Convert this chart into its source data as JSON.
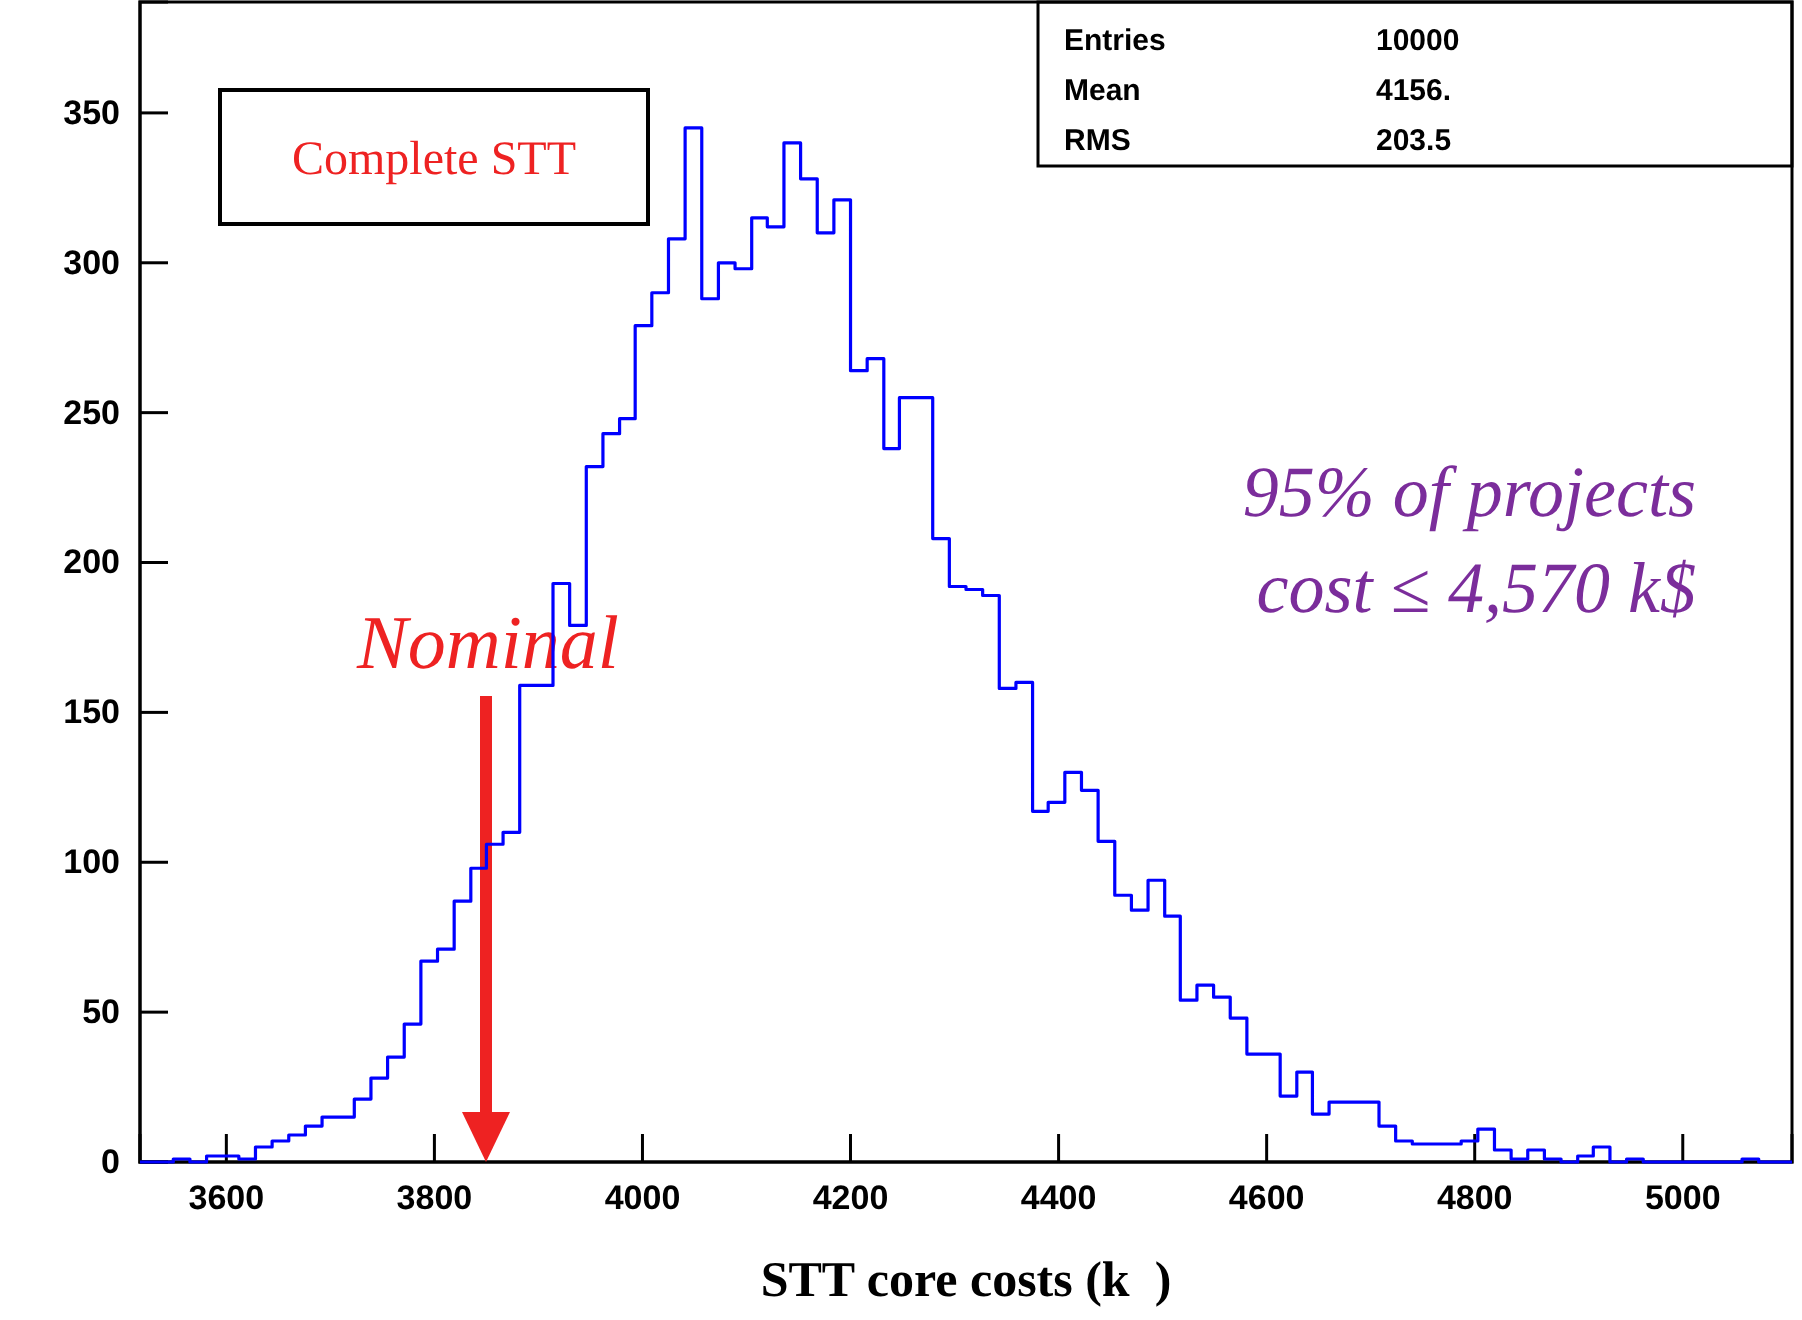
{
  "chart_data": {
    "type": "histogram",
    "xlabel": "STT core costs (k  )",
    "color": "#0000ff",
    "bins": [
      3517,
      3533,
      3549,
      3565,
      3581,
      3596,
      3612,
      3628,
      3644,
      3660,
      3676,
      3692,
      3708,
      3723,
      3739,
      3755,
      3771,
      3787,
      3803,
      3819,
      3835,
      3850,
      3866,
      3882,
      3898,
      3914,
      3930,
      3946,
      3962,
      3978,
      3993,
      4009,
      4025,
      4041,
      4057,
      4073,
      4089,
      4105,
      4120,
      4136,
      4152,
      4168,
      4184,
      4200,
      4216,
      4232,
      4247,
      4263,
      4279,
      4295,
      4311,
      4327,
      4343,
      4359,
      4375,
      4390,
      4406,
      4422,
      4438,
      4454,
      4470,
      4486,
      4502,
      4517,
      4533,
      4549,
      4565,
      4581,
      4597,
      4613,
      4629,
      4644,
      4660,
      4676,
      4692,
      4708,
      4724,
      4740,
      4756,
      4772,
      4787,
      4803,
      4819,
      4835,
      4851,
      4867,
      4883,
      4899,
      4914,
      4930,
      4946,
      4962,
      4978,
      4994,
      5010,
      5025,
      5041,
      5057,
      5073,
      5089,
      5105
    ],
    "values": [
      0,
      0,
      1,
      0,
      2,
      2,
      1,
      5,
      7,
      9,
      12,
      15,
      15,
      21,
      28,
      35,
      46,
      67,
      71,
      87,
      98,
      106,
      110,
      159,
      159,
      193,
      179,
      232,
      243,
      248,
      279,
      290,
      308,
      345,
      288,
      300,
      298,
      315,
      312,
      340,
      328,
      310,
      321,
      264,
      268,
      238,
      255,
      255,
      208,
      192,
      191,
      189,
      158,
      160,
      117,
      120,
      130,
      124,
      107,
      89,
      84,
      94,
      82,
      54,
      59,
      55,
      48,
      36,
      36,
      22,
      30,
      16,
      20,
      20,
      20,
      12,
      7,
      6,
      6,
      6,
      7,
      11,
      4,
      1,
      4,
      1,
      0,
      2,
      5,
      0,
      1,
      0,
      0,
      0,
      0,
      0,
      0,
      1,
      0,
      0
    ],
    "xlim": [
      3517,
      5105
    ],
    "ylim": [
      0,
      387
    ],
    "xticks": [
      3600,
      3800,
      4000,
      4200,
      4400,
      4600,
      4800,
      5000
    ],
    "yticks": [
      0,
      50,
      100,
      150,
      200,
      250,
      300,
      350
    ],
    "grid": false,
    "annotations": [
      "Complete STT",
      "Entries",
      "10000",
      "Mean",
      "4156.",
      "RMS",
      "203.5",
      "95% of projects",
      "cost ≤ 4,570 k$",
      "Nominal"
    ]
  }
}
